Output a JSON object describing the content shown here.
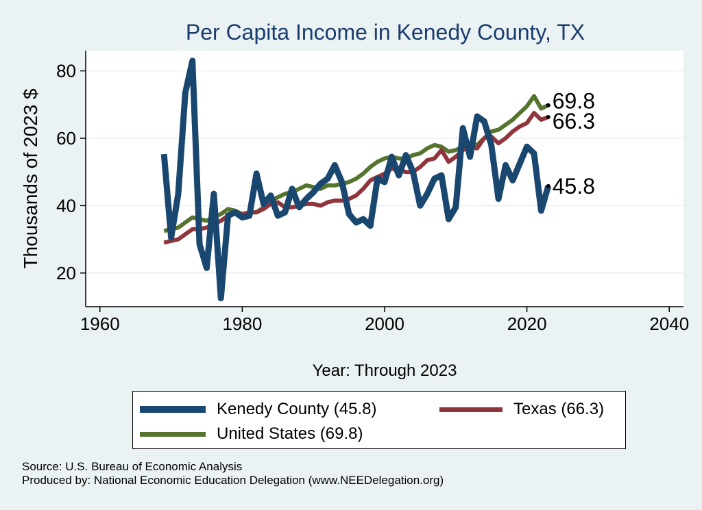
{
  "chart_data": {
    "type": "line",
    "title": "Per Capita Income in Kenedy County, TX",
    "xlabel": "Year: Through 2023",
    "ylabel": "Thousands of 2023 $",
    "xlim": [
      1958,
      2042
    ],
    "ylim": [
      10,
      86
    ],
    "xticks": [
      1960,
      1980,
      2000,
      2020,
      2040
    ],
    "yticks": [
      20,
      40,
      60,
      80
    ],
    "grid": true,
    "legend_position": "bottom",
    "x": [
      1969,
      1970,
      1971,
      1972,
      1973,
      1974,
      1975,
      1976,
      1977,
      1978,
      1979,
      1980,
      1981,
      1982,
      1983,
      1984,
      1985,
      1986,
      1987,
      1988,
      1989,
      1990,
      1991,
      1992,
      1993,
      1994,
      1995,
      1996,
      1997,
      1998,
      1999,
      2000,
      2001,
      2002,
      2003,
      2004,
      2005,
      2006,
      2007,
      2008,
      2009,
      2010,
      2011,
      2012,
      2013,
      2014,
      2015,
      2016,
      2017,
      2018,
      2019,
      2020,
      2021,
      2022,
      2023
    ],
    "series": [
      {
        "name": "Kenedy County",
        "legend_label": "Kenedy County (45.8)",
        "end_label": "45.8",
        "color": "#1a476f",
        "width": 9,
        "values": [
          55.3,
          30.5,
          43.5,
          73.5,
          83.0,
          28.5,
          21.5,
          43.5,
          12.5,
          37.0,
          38.0,
          36.5,
          37.0,
          49.5,
          40.5,
          43.0,
          37.0,
          38.0,
          45.0,
          39.5,
          42.0,
          44.0,
          46.5,
          48.0,
          52.0,
          47.0,
          37.5,
          35.0,
          36.0,
          34.0,
          48.0,
          47.0,
          54.5,
          49.0,
          55.0,
          50.0,
          40.0,
          43.5,
          48.0,
          49.0,
          36.0,
          39.5,
          63.0,
          54.5,
          66.5,
          65.0,
          58.0,
          42.0,
          52.0,
          47.5,
          52.5,
          57.5,
          55.5,
          38.5,
          45.8
        ]
      },
      {
        "name": "Texas",
        "legend_label": "Texas (66.3)",
        "end_label": "66.3",
        "color": "#90353b",
        "width": 6,
        "values": [
          29.0,
          29.5,
          30.0,
          31.5,
          33.0,
          33.0,
          33.5,
          34.5,
          35.5,
          37.0,
          38.0,
          37.5,
          38.0,
          38.0,
          39.0,
          40.5,
          41.0,
          39.5,
          39.5,
          40.0,
          40.5,
          40.5,
          40.0,
          41.0,
          41.5,
          41.5,
          42.0,
          43.0,
          45.0,
          47.5,
          48.5,
          49.5,
          51.0,
          50.5,
          50.0,
          50.0,
          51.5,
          53.5,
          54.0,
          56.5,
          53.0,
          54.5,
          56.5,
          57.5,
          57.0,
          60.0,
          60.5,
          58.5,
          60.0,
          62.0,
          63.5,
          64.5,
          67.5,
          65.5,
          66.3
        ]
      },
      {
        "name": "United States",
        "legend_label": "United States (69.8)",
        "end_label": "69.8",
        "color": "#55752f",
        "width": 6,
        "values": [
          32.5,
          33.0,
          33.5,
          35.0,
          36.5,
          36.0,
          35.5,
          36.5,
          37.5,
          39.0,
          38.5,
          37.5,
          38.0,
          38.0,
          39.5,
          41.5,
          42.5,
          43.5,
          44.0,
          45.0,
          46.0,
          45.5,
          45.0,
          46.0,
          46.0,
          46.5,
          47.0,
          48.0,
          49.5,
          51.5,
          53.0,
          54.0,
          54.5,
          54.0,
          54.0,
          55.0,
          55.5,
          57.0,
          58.0,
          57.5,
          56.0,
          56.5,
          57.5,
          58.5,
          58.0,
          60.0,
          62.0,
          62.5,
          64.0,
          65.5,
          67.5,
          69.5,
          72.5,
          68.8,
          69.8
        ]
      }
    ],
    "source_line": "Source: U.S. Bureau of Economic Analysis",
    "producer_line": "Produced by: National Economic Education Delegation (www.NEEDelegation.org)"
  }
}
